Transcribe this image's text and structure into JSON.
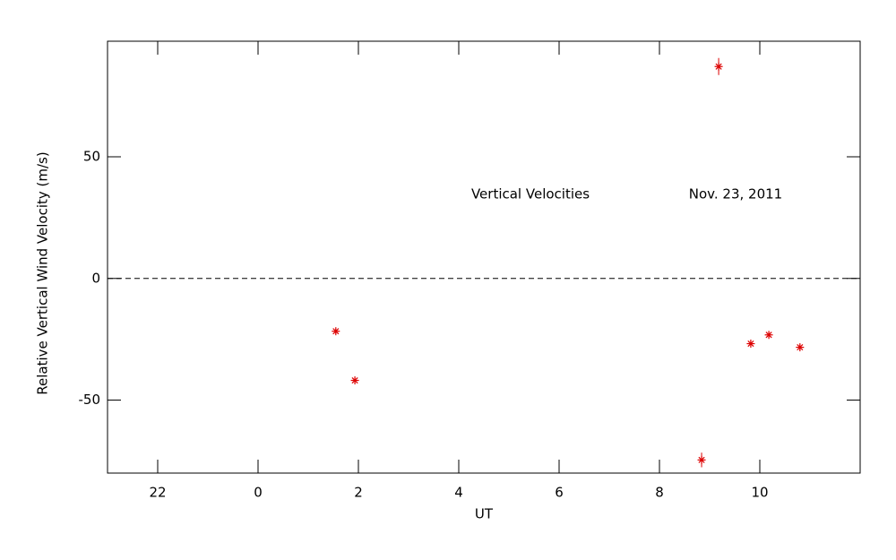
{
  "chart_data": {
    "type": "scatter",
    "x_label": "UT",
    "y_label": "Relative Vertical Wind Velocity (m/s)",
    "annotations": [
      "Vertical Velocities",
      "Nov. 23, 2011"
    ],
    "x": [
      1.55,
      1.93,
      8.84,
      9.18,
      9.82,
      10.18,
      10.8
    ],
    "y": [
      -21.7,
      -41.9,
      -74.6,
      87.1,
      -26.8,
      -23.2,
      -28.3
    ],
    "errors": [
      1,
      1,
      3,
      3.5,
      1,
      1,
      1
    ],
    "color": "#dd0000",
    "xlim": [
      -3,
      12
    ],
    "xticks": [
      {
        "value": -2,
        "label": "22"
      },
      0,
      2,
      4,
      6,
      8,
      10
    ],
    "ylim": [
      -80,
      97.5
    ],
    "yticks": [
      -50,
      0,
      50
    ],
    "hline": 0
  }
}
